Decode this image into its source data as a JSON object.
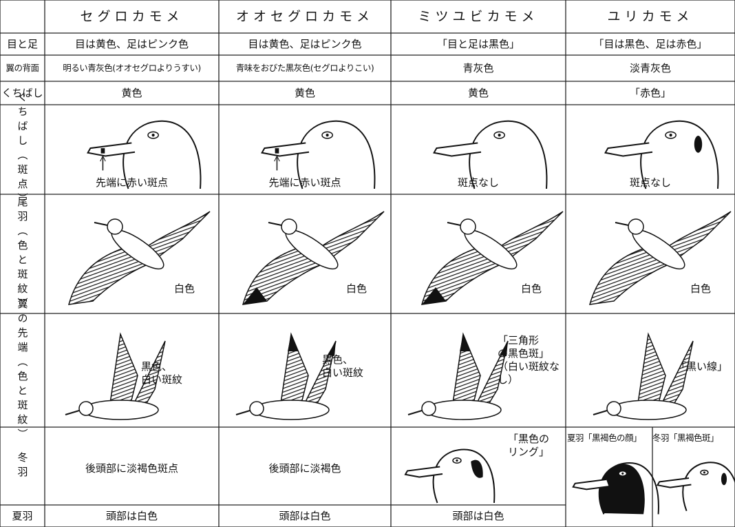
{
  "header": {
    "columns": [
      "セグロカモメ",
      "オオセグロカモメ",
      "ミツユビカモメ",
      "ユリカモメ"
    ]
  },
  "rows": [
    {
      "label": "目と足",
      "cells": [
        "目は黄色、足はピンク色",
        "目は黄色、足はピンク色",
        "「目と足は黒色」",
        "「目は黒色、足は赤色」"
      ]
    },
    {
      "label": "翼の背面",
      "cells": [
        "明るい青灰色(オオセグロよりうすい)",
        "青味をおびた黒灰色(セグロよりこい)",
        "青灰色",
        "淡青灰色"
      ]
    },
    {
      "label": "くちばし",
      "cells": [
        "黄色",
        "黄色",
        "黄色",
        "「赤色」"
      ]
    },
    {
      "label": "くちばし（斑点）",
      "cells": [
        "先端に赤い斑点",
        "先端に赤い斑点",
        "斑点なし",
        "斑点なし"
      ]
    },
    {
      "label": "尾羽（色と斑紋）",
      "cells": [
        "白色",
        "白色",
        "白色",
        "白色"
      ]
    },
    {
      "label": "翼の先端（色と斑紋）",
      "cells": [
        [
          "黒色、",
          "白い斑紋"
        ],
        [
          "黒色、",
          "白い斑紋"
        ],
        [
          "「三角形",
          "の黒色斑」",
          "（白い斑紋な",
          "し）"
        ],
        [
          "「黒い線」"
        ]
      ]
    },
    {
      "label": "冬羽",
      "cells": [
        "後頭部に淡褐色斑点",
        "後頭部に淡褐色",
        [
          "「黒色の",
          "リング」"
        ],
        [
          "夏羽「黒褐色の顔」",
          "冬羽「黒褐色斑」"
        ]
      ]
    },
    {
      "label": "夏羽",
      "cells": [
        "頭部は白色",
        "頭部は白色",
        "頭部は白色"
      ]
    }
  ]
}
